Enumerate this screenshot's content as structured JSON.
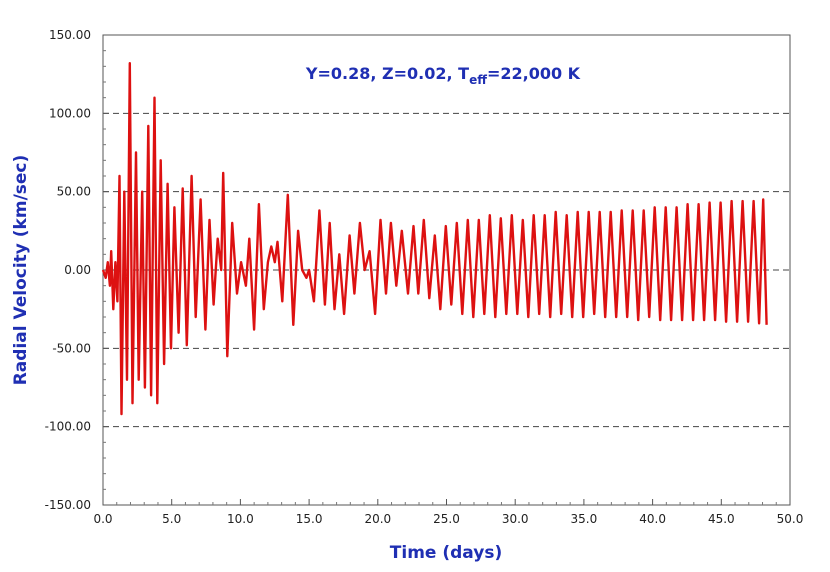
{
  "chart_data": {
    "type": "line",
    "title": "",
    "annotation": {
      "main": "Y=0.28, Z=0.02, T",
      "subscript": "eff",
      "tail": "=22,000 K"
    },
    "xlabel": "Time (days)",
    "ylabel": "Radial Velocity (km/sec)",
    "xlim": [
      0,
      50
    ],
    "ylim": [
      -150,
      150
    ],
    "x_ticks": [
      0,
      5,
      10,
      15,
      20,
      25,
      30,
      35,
      40,
      45,
      50
    ],
    "x_tick_labels": [
      "0.0",
      "5.0",
      "10.0",
      "15.0",
      "20.0",
      "25.0",
      "30.0",
      "35.0",
      "40.0",
      "45.0",
      "50.0"
    ],
    "y_ticks": [
      -150,
      -100,
      -50,
      0,
      50,
      100,
      150
    ],
    "y_tick_labels": [
      "-150.00",
      "-100.00",
      "-50.00",
      "0.00",
      "50.00",
      "100.00",
      "150.00"
    ],
    "grid": {
      "horizontal_dashed_at": [
        -100,
        -50,
        0,
        50,
        100
      ]
    },
    "legend": "none",
    "series": [
      {
        "color": "#dd1111",
        "points": [
          [
            0.0,
            0
          ],
          [
            0.2,
            -5
          ],
          [
            0.35,
            5
          ],
          [
            0.5,
            -10
          ],
          [
            0.6,
            12
          ],
          [
            0.75,
            -25
          ],
          [
            0.9,
            5
          ],
          [
            1.05,
            -20
          ],
          [
            1.2,
            60
          ],
          [
            1.35,
            -92
          ],
          [
            1.55,
            50
          ],
          [
            1.75,
            -70
          ],
          [
            1.95,
            132
          ],
          [
            2.15,
            -85
          ],
          [
            2.4,
            75
          ],
          [
            2.6,
            -70
          ],
          [
            2.85,
            50
          ],
          [
            3.05,
            -75
          ],
          [
            3.3,
            92
          ],
          [
            3.5,
            -80
          ],
          [
            3.75,
            110
          ],
          [
            3.95,
            -85
          ],
          [
            4.2,
            70
          ],
          [
            4.45,
            -60
          ],
          [
            4.7,
            55
          ],
          [
            4.95,
            -50
          ],
          [
            5.2,
            40
          ],
          [
            5.5,
            -40
          ],
          [
            5.8,
            52
          ],
          [
            6.1,
            -48
          ],
          [
            6.45,
            60
          ],
          [
            6.75,
            -30
          ],
          [
            7.1,
            45
          ],
          [
            7.45,
            -38
          ],
          [
            7.75,
            32
          ],
          [
            8.05,
            -22
          ],
          [
            8.35,
            20
          ],
          [
            8.6,
            0
          ],
          [
            8.75,
            62
          ],
          [
            9.05,
            -55
          ],
          [
            9.4,
            30
          ],
          [
            9.75,
            -15
          ],
          [
            10.05,
            5
          ],
          [
            10.4,
            -10
          ],
          [
            10.65,
            20
          ],
          [
            11.0,
            -38
          ],
          [
            11.35,
            42
          ],
          [
            11.7,
            -25
          ],
          [
            12.0,
            5
          ],
          [
            12.25,
            15
          ],
          [
            12.5,
            5
          ],
          [
            12.7,
            18
          ],
          [
            13.05,
            -20
          ],
          [
            13.45,
            48
          ],
          [
            13.85,
            -35
          ],
          [
            14.2,
            25
          ],
          [
            14.5,
            0
          ],
          [
            14.8,
            -5
          ],
          [
            15.0,
            0
          ],
          [
            15.35,
            -20
          ],
          [
            15.75,
            38
          ],
          [
            16.15,
            -22
          ],
          [
            16.5,
            30
          ],
          [
            16.85,
            -25
          ],
          [
            17.2,
            10
          ],
          [
            17.55,
            -28
          ],
          [
            17.95,
            22
          ],
          [
            18.3,
            -15
          ],
          [
            18.7,
            30
          ],
          [
            19.05,
            0
          ],
          [
            19.4,
            12
          ],
          [
            19.8,
            -28
          ],
          [
            20.2,
            32
          ],
          [
            20.6,
            -15
          ],
          [
            20.95,
            30
          ],
          [
            21.35,
            -10
          ],
          [
            21.75,
            25
          ],
          [
            22.2,
            -15
          ],
          [
            22.6,
            28
          ],
          [
            22.95,
            -15
          ],
          [
            23.35,
            32
          ],
          [
            23.75,
            -18
          ],
          [
            24.15,
            22
          ],
          [
            24.55,
            -25
          ],
          [
            24.95,
            28
          ],
          [
            25.35,
            -22
          ],
          [
            25.75,
            30
          ],
          [
            26.15,
            -28
          ],
          [
            26.55,
            32
          ],
          [
            26.95,
            -30
          ],
          [
            27.35,
            32
          ],
          [
            27.75,
            -28
          ],
          [
            28.15,
            35
          ],
          [
            28.55,
            -30
          ],
          [
            28.95,
            33
          ],
          [
            29.35,
            -28
          ],
          [
            29.75,
            35
          ],
          [
            30.15,
            -28
          ],
          [
            30.55,
            32
          ],
          [
            30.95,
            -30
          ],
          [
            31.35,
            35
          ],
          [
            31.75,
            -28
          ],
          [
            32.15,
            35
          ],
          [
            32.55,
            -30
          ],
          [
            32.95,
            37
          ],
          [
            33.35,
            -28
          ],
          [
            33.75,
            35
          ],
          [
            34.15,
            -30
          ],
          [
            34.55,
            37
          ],
          [
            34.95,
            -30
          ],
          [
            35.35,
            37
          ],
          [
            35.75,
            -28
          ],
          [
            36.15,
            37
          ],
          [
            36.55,
            -30
          ],
          [
            36.95,
            37
          ],
          [
            37.35,
            -30
          ],
          [
            37.75,
            38
          ],
          [
            38.15,
            -30
          ],
          [
            38.55,
            38
          ],
          [
            38.95,
            -32
          ],
          [
            39.35,
            38
          ],
          [
            39.75,
            -30
          ],
          [
            40.15,
            40
          ],
          [
            40.55,
            -32
          ],
          [
            40.95,
            40
          ],
          [
            41.35,
            -32
          ],
          [
            41.75,
            40
          ],
          [
            42.15,
            -32
          ],
          [
            42.55,
            42
          ],
          [
            42.95,
            -32
          ],
          [
            43.35,
            42
          ],
          [
            43.75,
            -32
          ],
          [
            44.15,
            43
          ],
          [
            44.55,
            -32
          ],
          [
            44.95,
            43
          ],
          [
            45.35,
            -33
          ],
          [
            45.75,
            44
          ],
          [
            46.15,
            -33
          ],
          [
            46.55,
            44
          ],
          [
            46.95,
            -33
          ],
          [
            47.35,
            44
          ],
          [
            47.75,
            -34
          ],
          [
            48.05,
            45
          ],
          [
            48.3,
            -35
          ]
        ]
      }
    ]
  }
}
